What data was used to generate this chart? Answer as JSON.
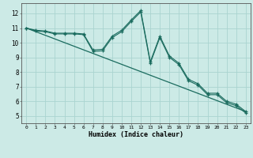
{
  "title": "",
  "xlabel": "Humidex (Indice chaleur)",
  "ylabel": "",
  "bg_color": "#cceae6",
  "grid_color": "#aad4d0",
  "line_color": "#1a6b5e",
  "xlim": [
    -0.5,
    23.5
  ],
  "ylim": [
    4.5,
    12.7
  ],
  "xticks": [
    0,
    1,
    2,
    3,
    4,
    5,
    6,
    7,
    8,
    9,
    10,
    11,
    12,
    13,
    14,
    15,
    16,
    17,
    18,
    19,
    20,
    21,
    22,
    23
  ],
  "yticks": [
    5,
    6,
    7,
    8,
    9,
    10,
    11,
    12
  ],
  "line1_x": [
    0,
    1,
    2,
    3,
    4,
    5,
    6,
    7,
    8,
    9,
    10,
    11,
    12,
    13,
    14,
    15,
    16,
    17,
    18,
    19,
    20,
    21,
    22,
    23
  ],
  "line1_y": [
    11.0,
    10.85,
    10.8,
    10.65,
    10.65,
    10.65,
    10.6,
    9.5,
    9.55,
    10.45,
    10.85,
    11.55,
    12.2,
    8.7,
    10.45,
    9.1,
    8.6,
    7.5,
    7.2,
    6.55,
    6.55,
    6.0,
    5.8,
    5.3
  ],
  "line2_x": [
    0,
    1,
    2,
    3,
    4,
    5,
    6,
    7,
    8,
    9,
    10,
    11,
    12,
    13,
    14,
    15,
    16,
    17,
    18,
    19,
    20,
    21,
    22,
    23
  ],
  "line2_y": [
    11.0,
    10.8,
    10.75,
    10.6,
    10.6,
    10.6,
    10.55,
    9.4,
    9.45,
    10.35,
    10.75,
    11.45,
    12.1,
    8.6,
    10.35,
    9.0,
    8.5,
    7.4,
    7.1,
    6.45,
    6.45,
    5.9,
    5.7,
    5.2
  ],
  "line3_x": [
    0,
    23
  ],
  "line3_y": [
    11.0,
    5.3
  ]
}
